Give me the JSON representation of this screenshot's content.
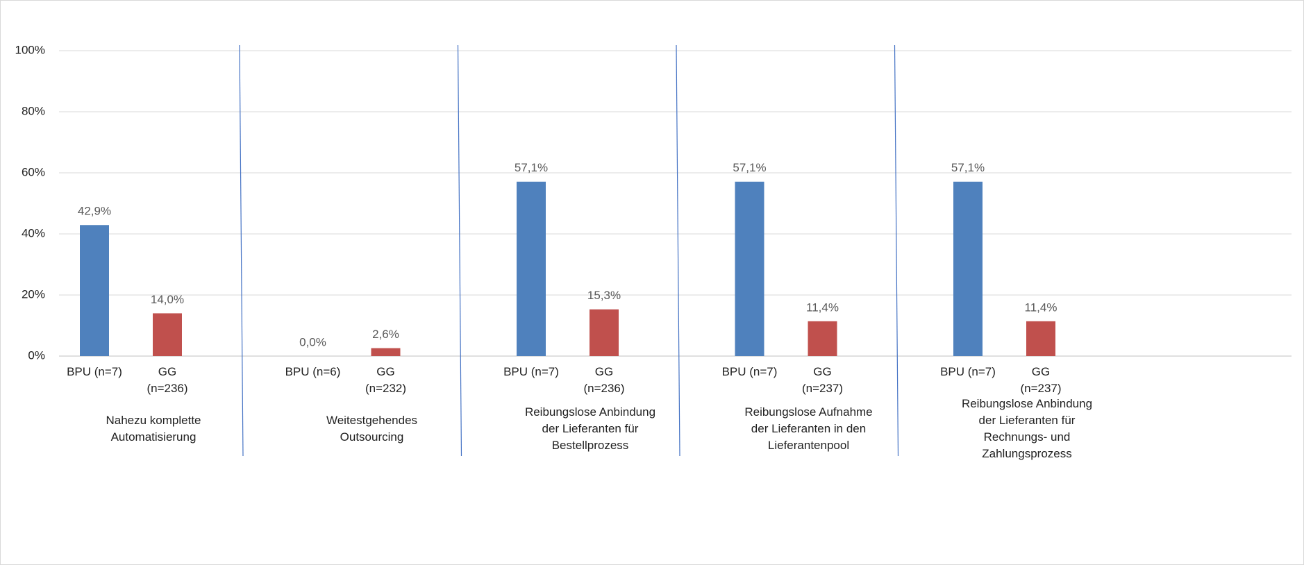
{
  "chart_data": {
    "type": "bar",
    "ylim": [
      0,
      100
    ],
    "yticks": [
      {
        "value": 0,
        "label": "0%"
      },
      {
        "value": 20,
        "label": "20%"
      },
      {
        "value": 40,
        "label": "40%"
      },
      {
        "value": 60,
        "label": "60%"
      },
      {
        "value": 80,
        "label": "80%"
      },
      {
        "value": 100,
        "label": "100%"
      }
    ],
    "grid": true,
    "colors": [
      "#4f81bd",
      "#c0504d"
    ],
    "groups": [
      {
        "label": [
          "Nahezu komplette",
          "Automatisierung"
        ],
        "bars": [
          {
            "label": [
              "BPU (n=7)"
            ],
            "value": 42.9,
            "value_label": "42,9%"
          },
          {
            "label": [
              "GG",
              "(n=236)"
            ],
            "value": 14.0,
            "value_label": "14,0%"
          }
        ]
      },
      {
        "label": [
          "Weitestgehendes",
          "Outsourcing"
        ],
        "bars": [
          {
            "label": [
              "BPU (n=6)"
            ],
            "value": 0.0,
            "value_label": "0,0%"
          },
          {
            "label": [
              "GG",
              "(n=232)"
            ],
            "value": 2.6,
            "value_label": "2,6%"
          }
        ]
      },
      {
        "label": [
          "Reibungslose Anbindung",
          "der Lieferanten für",
          "Bestellprozess"
        ],
        "bars": [
          {
            "label": [
              "BPU (n=7)"
            ],
            "value": 57.1,
            "value_label": "57,1%"
          },
          {
            "label": [
              "GG",
              "(n=236)"
            ],
            "value": 15.3,
            "value_label": "15,3%"
          }
        ]
      },
      {
        "label": [
          "Reibungslose Aufnahme",
          "der Lieferanten in den",
          "Lieferantenpool"
        ],
        "bars": [
          {
            "label": [
              "BPU (n=7)"
            ],
            "value": 57.1,
            "value_label": "57,1%"
          },
          {
            "label": [
              "GG",
              "(n=237)"
            ],
            "value": 11.4,
            "value_label": "11,4%"
          }
        ]
      },
      {
        "label": [
          "Reibungslose Anbindung",
          "der Lieferanten für",
          "Rechnungs- und",
          "Zahlungsprozess"
        ],
        "bars": [
          {
            "label": [
              "BPU (n=7)"
            ],
            "value": 57.1,
            "value_label": "57,1%"
          },
          {
            "label": [
              "GG",
              "(n=237)"
            ],
            "value": 11.4,
            "value_label": "11,4%"
          }
        ]
      }
    ]
  }
}
